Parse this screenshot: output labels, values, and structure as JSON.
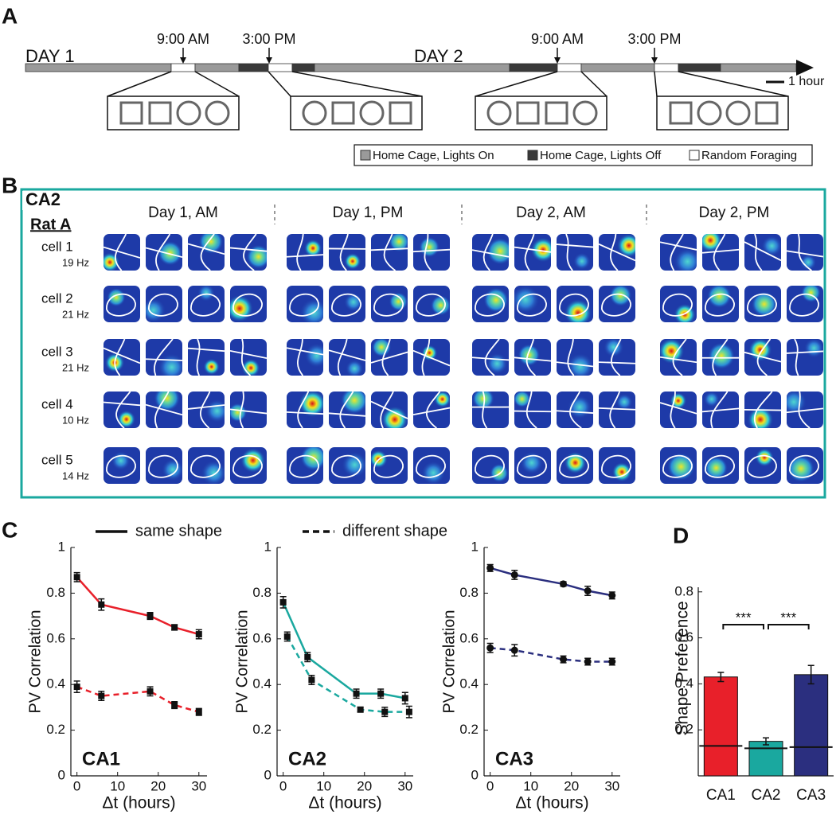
{
  "panel_a": {
    "label": "A",
    "days": [
      "DAY 1",
      "DAY 2"
    ],
    "times": [
      "9:00 AM",
      "3:00 PM",
      "9:00 AM",
      "3:00 PM"
    ],
    "scale": "1 hour",
    "legend": [
      "Home Cage, Lights On",
      "Home Cage, Lights Off",
      "Random Foraging"
    ]
  },
  "panel_b": {
    "label": "B",
    "region": "CA2",
    "rat": "Rat A",
    "columns": [
      "Day 1, AM",
      "Day 1, PM",
      "Day 2, AM",
      "Day 2, PM"
    ],
    "rows": [
      {
        "cell": "cell 1",
        "rate": "19 Hz"
      },
      {
        "cell": "cell 2",
        "rate": "21 Hz"
      },
      {
        "cell": "cell 3",
        "rate": "21 Hz"
      },
      {
        "cell": "cell 4",
        "rate": "10 Hz"
      },
      {
        "cell": "cell 5",
        "rate": "14 Hz"
      }
    ]
  },
  "panel_labels": {
    "c": "C",
    "d": "D"
  },
  "chart_data": [
    {
      "type": "line",
      "title": "CA1",
      "title_color": "#e8202a",
      "marker": "square",
      "x_label": "Δt (hours)",
      "y_label": "PV Correlation",
      "xlim": [
        -1.5,
        32
      ],
      "xticks": [
        0,
        10,
        20,
        30
      ],
      "ylim": [
        0,
        1
      ],
      "yticks": [
        0,
        0.2,
        0.4,
        0.6,
        0.8,
        1
      ],
      "series": [
        {
          "name": "same shape",
          "color": "#e8202a",
          "dashed": false,
          "x": [
            0,
            6,
            18,
            24,
            30
          ],
          "values": [
            0.87,
            0.75,
            0.7,
            0.65,
            0.62
          ],
          "errors": [
            0.02,
            0.025,
            0.015,
            0.012,
            0.02
          ]
        },
        {
          "name": "different shape",
          "color": "#e8202a",
          "dashed": true,
          "x": [
            0,
            6,
            18,
            24,
            30
          ],
          "values": [
            0.39,
            0.35,
            0.37,
            0.31,
            0.28
          ],
          "errors": [
            0.025,
            0.02,
            0.02,
            0.015,
            0.015
          ]
        }
      ]
    },
    {
      "type": "line",
      "title": "CA2",
      "title_color": "#1aa89f",
      "marker": "square",
      "x_label": "Δt (hours)",
      "y_label": "PV Correlation",
      "xlim": [
        -1.5,
        32
      ],
      "xticks": [
        0,
        10,
        20,
        30
      ],
      "ylim": [
        0,
        1
      ],
      "yticks": [
        0,
        0.2,
        0.4,
        0.6,
        0.8,
        1
      ],
      "series": [
        {
          "color": "#1aa89f",
          "dashed": false,
          "x": [
            0,
            6,
            18,
            24,
            30
          ],
          "values": [
            0.76,
            0.52,
            0.36,
            0.36,
            0.34
          ],
          "errors": [
            0.025,
            0.02,
            0.02,
            0.02,
            0.025
          ]
        },
        {
          "color": "#1aa89f",
          "dashed": true,
          "x": [
            1,
            7,
            19,
            25,
            31
          ],
          "values": [
            0.61,
            0.42,
            0.29,
            0.28,
            0.28
          ],
          "errors": [
            0.02,
            0.02,
            0.01,
            0.02,
            0.025
          ]
        }
      ]
    },
    {
      "type": "line",
      "title": "CA3",
      "title_color": "#2b2f7f",
      "marker": "circle",
      "x_label": "Δt (hours)",
      "y_label": "PV Correlation",
      "xlim": [
        -1.5,
        32
      ],
      "xticks": [
        0,
        10,
        20,
        30
      ],
      "ylim": [
        0,
        1
      ],
      "yticks": [
        0,
        0.2,
        0.4,
        0.6,
        0.8,
        1
      ],
      "series": [
        {
          "color": "#2b2f7f",
          "dashed": false,
          "x": [
            0,
            6,
            18,
            24,
            30
          ],
          "values": [
            0.91,
            0.88,
            0.84,
            0.81,
            0.79
          ],
          "errors": [
            0.015,
            0.02,
            0.01,
            0.02,
            0.015
          ]
        },
        {
          "color": "#2b2f7f",
          "dashed": true,
          "x": [
            0,
            6,
            18,
            24,
            30
          ],
          "values": [
            0.56,
            0.55,
            0.51,
            0.5,
            0.5
          ],
          "errors": [
            0.02,
            0.025,
            0.015,
            0.015,
            0.015
          ]
        }
      ]
    },
    {
      "type": "bar",
      "y_label": "Shape Preference",
      "categories": [
        "CA1",
        "CA2",
        "CA3"
      ],
      "values": [
        0.43,
        0.15,
        0.44
      ],
      "errors": [
        0.02,
        0.015,
        0.04
      ],
      "colors": [
        "#e8202a",
        "#1aa89f",
        "#2b2f7f"
      ],
      "reference_values": [
        0.13,
        0.12,
        0.125
      ],
      "significance": [
        "***",
        "***"
      ],
      "ylim": [
        0,
        0.82
      ],
      "yticks": [
        0.2,
        0.4,
        0.6,
        0.8
      ]
    }
  ]
}
